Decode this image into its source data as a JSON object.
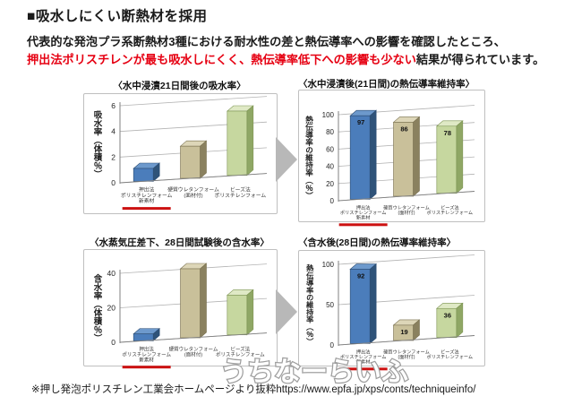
{
  "page": {
    "heading": "■吸水しにくい断熱材を採用",
    "intro_line1": "代表的な発泡プラ系断熱材3種における耐水性の差と熱伝導率への影響を確認したところ、",
    "intro_line2_red": "押出法ポリスチレンが最も吸水しにくく、熱伝導率低下への影響も少ない",
    "intro_line2_rest": "結果が得られています。",
    "watermark": "うちなーらいふ",
    "source_note": "※押し発泡ポリスチレン工業会ホームページより抜粋https://www.epfa.jp/xps/conts/techniqueinfo/"
  },
  "colors": {
    "accent_red_text": "#e60012",
    "underline_red": "#cc1111",
    "arrow_gray": "#b8b8b8",
    "watermark_outline": "#9e9e9e",
    "watermark_fill": "#ffffff",
    "chart_border": "#bfbfbf",
    "gridline": "#b3b3b3",
    "axis": "#808080",
    "bars": [
      {
        "name": "blue",
        "front": "#4b7dbb",
        "top": "#6d99cc",
        "side": "#2f5379",
        "stroke": "#2c4d73"
      },
      {
        "name": "tan",
        "front": "#c9c09a",
        "top": "#ddd6b8",
        "side": "#8a815f",
        "stroke": "#7a7150"
      },
      {
        "name": "green",
        "front": "#c6d79f",
        "top": "#dfe9c5",
        "side": "#8fa765",
        "stroke": "#7d9453"
      }
    ]
  },
  "chart_data": [
    {
      "type": "bar",
      "title": "〈水中浸漬21日間後の吸水率〉",
      "ylabel": "吸水率（体積％）",
      "ylim": [
        0,
        6
      ],
      "yticks": [
        0,
        2,
        4,
        6
      ],
      "categories": [
        "押出法\nポリスチレンフォーム\n新素材",
        "硬質ウレタンフォーム\n(面材付)",
        "ビーズ法\nポリスチレンフォーム"
      ],
      "values": [
        1,
        2.5,
        5
      ],
      "data_labels": false,
      "grid": true,
      "legend": "none",
      "highlight_category_index": 0
    },
    {
      "type": "bar",
      "title": "〈水中浸漬後(21日間)の熱伝導率維持率〉",
      "ylabel": "熱伝導率の維持率（％）",
      "ylim": [
        0,
        100
      ],
      "yticks": [
        0,
        20,
        40,
        60,
        80,
        100
      ],
      "categories": [
        "押出法\nポリスチレンフォーム\n新素材",
        "硬質ウレタンフォーム\n(面材付)",
        "ビーズ法\nポリスチレンフォーム"
      ],
      "values": [
        97,
        86,
        78
      ],
      "data_labels": true,
      "grid": true,
      "legend": "none",
      "highlight_category_index": 0
    },
    {
      "type": "bar",
      "title": "〈水蒸気圧差下、28日間試験後の含水率〉",
      "ylabel": "含水率（体積％）",
      "ylim": [
        0,
        40
      ],
      "yticks": [
        0,
        20,
        40
      ],
      "categories": [
        "押出法\nポリスチレンフォーム\n新素材",
        "硬質ウレタンフォーム\n(面材付)",
        "ビーズ法\nポリスチレンフォーム"
      ],
      "values": [
        4,
        40,
        23
      ],
      "data_labels": false,
      "grid": true,
      "legend": "none",
      "highlight_category_index": 0
    },
    {
      "type": "bar",
      "title": "〈含水後(28日間)の熱伝導率維持率〉",
      "ylabel": "熱伝導率の維持率（％）",
      "ylim": [
        0,
        100
      ],
      "yticks": [
        0,
        50,
        100
      ],
      "categories": [
        "押出法\nポリスチレンフォーム\n新素材",
        "硬質ウレタンフォーム\n(面材付)",
        "ビーズ法\nポリスチレンフォーム"
      ],
      "values": [
        92,
        19,
        36
      ],
      "data_labels": true,
      "grid": true,
      "legend": "none",
      "highlight_category_index": 0
    }
  ]
}
